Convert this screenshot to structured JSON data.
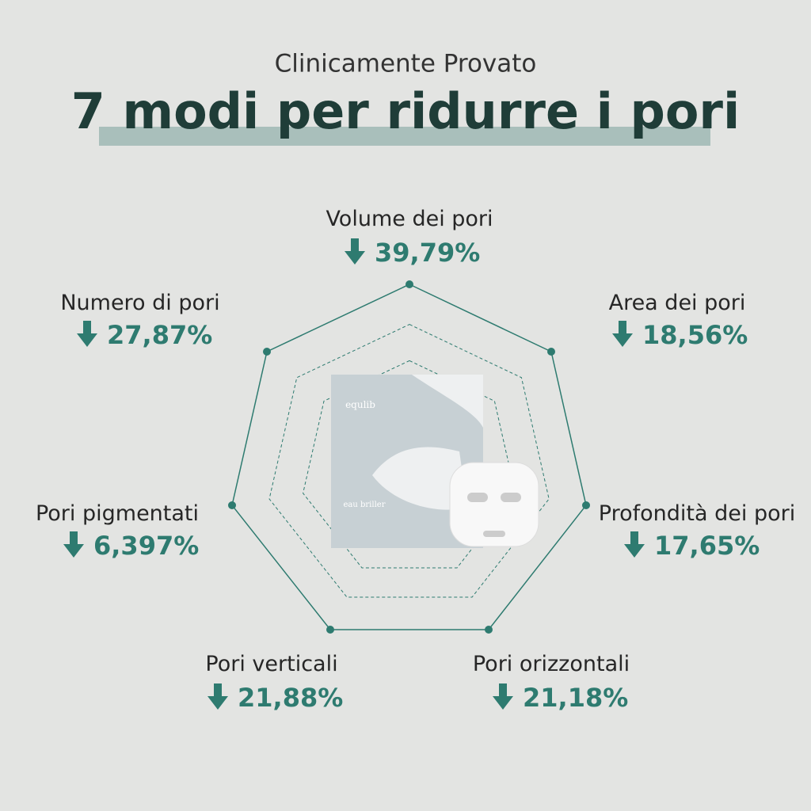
{
  "header": {
    "subtitle": "Clinicamente Provato",
    "title": "7 modi per ridurre i pori"
  },
  "product": {
    "brand": "equlib",
    "name": "eau briller"
  },
  "items": [
    {
      "label": "Volume dei pori",
      "value": "39,79%"
    },
    {
      "label": "Area dei pori",
      "value": "18,56%"
    },
    {
      "label": "Profondità dei pori",
      "value": "17,65%"
    },
    {
      "label": "Pori orizzontali",
      "value": "21,18%"
    },
    {
      "label": "Pori verticali",
      "value": "21,88%"
    },
    {
      "label": "Pori pigmentati",
      "value": "6,397%"
    },
    {
      "label": "Numero di pori",
      "value": "27,87%"
    }
  ]
}
